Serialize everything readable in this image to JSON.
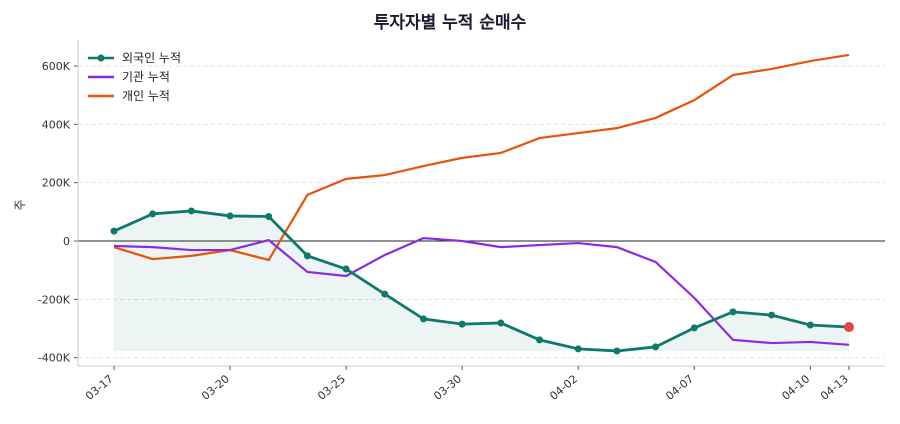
{
  "chart_data": {
    "type": "line",
    "title": "투자자별 누적 순매수",
    "xlabel": "",
    "ylabel": "주",
    "x": [
      "03-17",
      "03-18",
      "03-19",
      "03-20",
      "03-21",
      "03-24",
      "03-25",
      "03-26",
      "03-27",
      "03-30",
      "03-31",
      "04-01",
      "04-02",
      "04-03",
      "04-04",
      "04-07",
      "04-08",
      "04-09",
      "04-10",
      "04-13"
    ],
    "xticks": [
      "03-17",
      "03-20",
      "03-25",
      "03-30",
      "04-02",
      "04-07",
      "04-10",
      "04-13"
    ],
    "yticks": [
      -400000,
      -200000,
      0,
      200000,
      400000,
      600000
    ],
    "ytick_labels": [
      "-400K",
      "-200K",
      "0",
      "200K",
      "400K",
      "600K"
    ],
    "ylim": [
      -430000,
      680000
    ],
    "grid": "y-dashed",
    "legend": "top-left",
    "series": [
      {
        "name": "외국인 누적",
        "color": "#0f7a6c",
        "markers": true,
        "fill": true,
        "values": [
          34000,
          93000,
          103000,
          86000,
          84000,
          -51000,
          -96000,
          -182000,
          -267000,
          -285000,
          -281000,
          -339000,
          -370000,
          -377000,
          -363000,
          -298000,
          -243000,
          -254000,
          -288000,
          -295000
        ]
      },
      {
        "name": "기관 누적",
        "color": "#8a2be2",
        "values": [
          -17000,
          -21000,
          -31000,
          -31000,
          3000,
          -106000,
          -120000,
          -48000,
          10000,
          0,
          -21000,
          -14000,
          -7000,
          -21000,
          -72000,
          -195000,
          -339000,
          -350000,
          -346000,
          -356000
        ]
      },
      {
        "name": "개인 누적",
        "color": "#e8520c",
        "values": [
          -21000,
          -62000,
          -51000,
          -31000,
          -65000,
          158000,
          213000,
          226000,
          257000,
          285000,
          302000,
          353000,
          370000,
          387000,
          422000,
          483000,
          569000,
          590000,
          617000,
          638000
        ]
      }
    ],
    "last_point_marker_color": "#e84545"
  }
}
